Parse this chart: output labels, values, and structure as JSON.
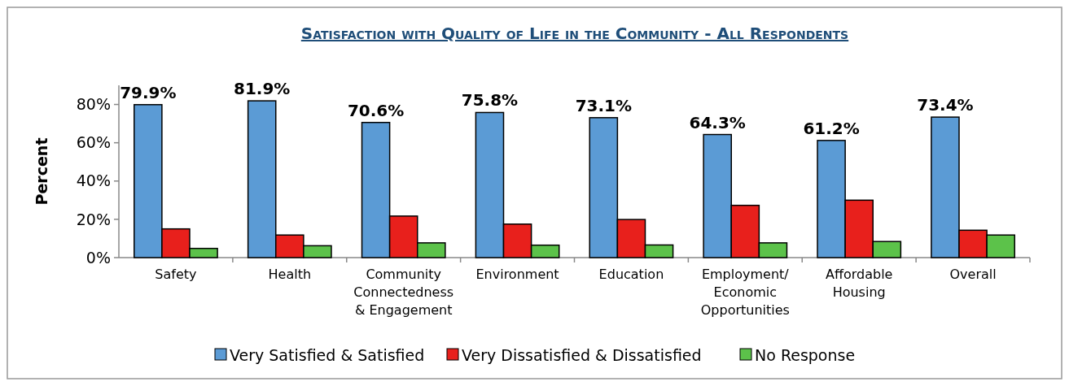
{
  "chart_data": {
    "type": "bar",
    "title": "Satisfaction with Quality of Life in the Community - All Respondents",
    "ylabel": "Percent",
    "categories": [
      "Safety",
      "Health",
      "Community Connectedness & Engagement",
      "Environment",
      "Education",
      "Employment/ Economic Opportunities",
      "Affordable Housing",
      "Overall"
    ],
    "series": [
      {
        "name": "Very Satisfied & Satisfied",
        "color": "#5b9bd5",
        "values": [
          79.9,
          81.9,
          70.6,
          75.8,
          73.1,
          64.3,
          61.2,
          73.4
        ],
        "value_labels": [
          "79.9%",
          "81.9%",
          "70.6%",
          "75.8%",
          "73.1%",
          "64.3%",
          "61.2%",
          "73.4%"
        ]
      },
      {
        "name": "Very Dissatisfied & Dissatisfied",
        "color": "#e8201c",
        "values": [
          15.0,
          11.8,
          21.7,
          17.5,
          19.9,
          27.3,
          30.0,
          14.3
        ]
      },
      {
        "name": "No Response",
        "color": "#5cc24a",
        "values": [
          4.8,
          6.2,
          7.7,
          6.5,
          6.6,
          7.7,
          8.4,
          11.8
        ]
      }
    ],
    "ylim": [
      0,
      90
    ],
    "yticks": [
      {
        "value": 0,
        "label": "0%"
      },
      {
        "value": 20,
        "label": "20%"
      },
      {
        "value": 40,
        "label": "40%"
      },
      {
        "value": 60,
        "label": "60%"
      },
      {
        "value": 80,
        "label": "80%"
      }
    ],
    "grid": false,
    "legend": "bottom"
  }
}
